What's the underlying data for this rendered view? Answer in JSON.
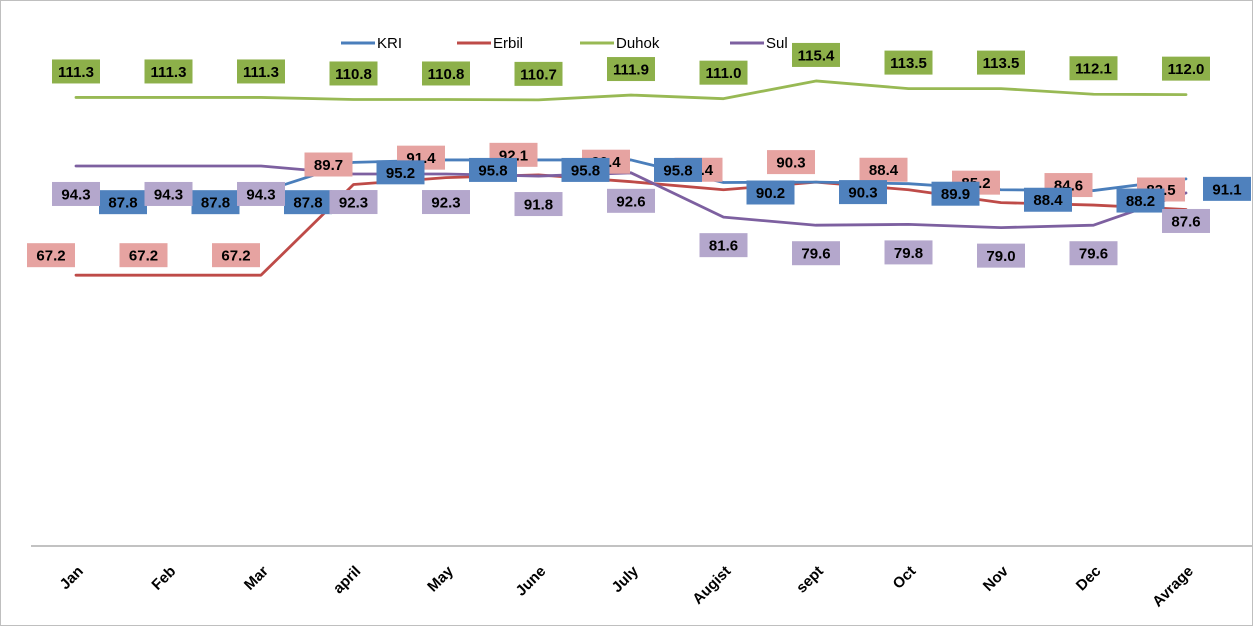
{
  "chart_data": {
    "type": "line",
    "title": "",
    "xlabel": "",
    "ylabel": "",
    "ylim": [
      0,
      140
    ],
    "grid": false,
    "legend_position": "top",
    "categories": [
      "Jan",
      "Feb",
      "Mar",
      "april",
      "May",
      "June",
      "July",
      "Augist",
      "sept",
      "Oct",
      "Nov",
      "Dec",
      "Avrage"
    ],
    "series": [
      {
        "name": "KRI",
        "color": "#4a7ebb",
        "label_bg": "#4f81bd",
        "values": [
          87.8,
          87.8,
          87.8,
          95.2,
          95.8,
          95.8,
          95.8,
          90.2,
          90.3,
          89.9,
          88.4,
          88.2,
          91.1
        ]
      },
      {
        "name": "Erbil",
        "color": "#be4b48",
        "label_bg": "#e6a3a1",
        "values": [
          67.2,
          67.2,
          67.2,
          89.7,
          91.4,
          92.1,
          90.4,
          88.4,
          90.3,
          88.4,
          85.2,
          84.6,
          83.5
        ]
      },
      {
        "name": "Duhok",
        "color": "#98b954",
        "label_bg": "#8db04a",
        "values": [
          111.3,
          111.3,
          111.3,
          110.8,
          110.8,
          110.7,
          111.9,
          111.0,
          115.4,
          113.5,
          113.5,
          112.1,
          112.0
        ]
      },
      {
        "name": "Sul",
        "color": "#7d60a0",
        "label_bg": "#b4a7cc",
        "values": [
          94.3,
          94.3,
          94.3,
          92.3,
          92.3,
          91.8,
          92.6,
          81.6,
          79.6,
          79.8,
          79.0,
          79.6,
          87.6
        ]
      }
    ],
    "data_labels": {
      "KRI": [
        "87.8",
        "87.8",
        "87.8",
        "95.2",
        "95.8",
        "95.8",
        "95.8",
        "90.2",
        "90.3",
        "89.9",
        "88.4",
        "88.2",
        "91.1"
      ],
      "Erbil": [
        "67.2",
        "67.2",
        "67.2",
        "89.7",
        "91.4",
        "92.1",
        "90.4",
        "88.4",
        "90.3",
        "88.4",
        "85.2",
        "84.6",
        "83.5"
      ],
      "Duhok": [
        "111.3",
        "111.3",
        "111.3",
        "110.8",
        "110.8",
        "110.7",
        "111.9",
        "111.0",
        "115.4",
        "113.5",
        "113.5",
        "112.1",
        "112.0"
      ],
      "Sul": [
        "94.3",
        "94.3",
        "94.3",
        "92.3",
        "92.3",
        "91.8",
        "92.6",
        "81.6",
        "79.6",
        "79.8",
        "79.0",
        "79.6",
        "87.6"
      ]
    }
  }
}
